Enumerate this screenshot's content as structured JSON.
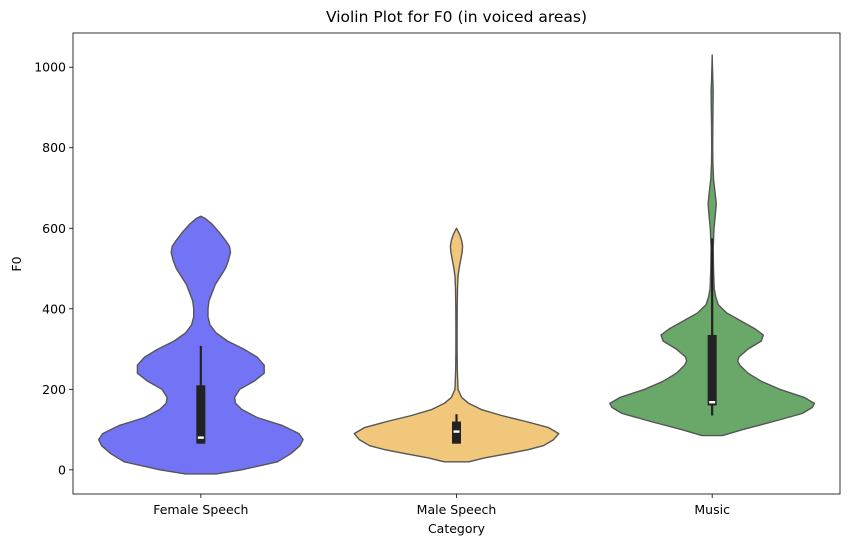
{
  "chart_data": {
    "type": "violin",
    "title": "Violin Plot for F0 (in voiced areas)",
    "xlabel": "Category",
    "ylabel": "F0",
    "categories": [
      "Female Speech",
      "Male Speech",
      "Music"
    ],
    "ylim": [
      -60,
      1085
    ],
    "yticks": [
      0,
      200,
      400,
      600,
      800,
      1000
    ],
    "grid": false,
    "series": [
      {
        "category": "Female Speech",
        "color": "#0000ee",
        "opacity": 0.55,
        "extent": [
          -10,
          630
        ],
        "density": [
          [
            -10,
            0.15
          ],
          [
            0,
            0.4
          ],
          [
            20,
            0.75
          ],
          [
            40,
            0.88
          ],
          [
            60,
            0.97
          ],
          [
            75,
            1.0
          ],
          [
            90,
            0.96
          ],
          [
            110,
            0.8
          ],
          [
            130,
            0.55
          ],
          [
            150,
            0.4
          ],
          [
            165,
            0.34
          ],
          [
            180,
            0.33
          ],
          [
            200,
            0.38
          ],
          [
            220,
            0.52
          ],
          [
            240,
            0.62
          ],
          [
            260,
            0.62
          ],
          [
            280,
            0.55
          ],
          [
            300,
            0.42
          ],
          [
            320,
            0.26
          ],
          [
            340,
            0.15
          ],
          [
            360,
            0.09
          ],
          [
            380,
            0.07
          ],
          [
            400,
            0.07
          ],
          [
            420,
            0.08
          ],
          [
            440,
            0.11
          ],
          [
            460,
            0.14
          ],
          [
            480,
            0.19
          ],
          [
            500,
            0.24
          ],
          [
            520,
            0.27
          ],
          [
            540,
            0.29
          ],
          [
            555,
            0.28
          ],
          [
            570,
            0.24
          ],
          [
            590,
            0.18
          ],
          [
            610,
            0.11
          ],
          [
            625,
            0.04
          ],
          [
            630,
            0.0
          ]
        ],
        "quartiles": [
          65,
          80,
          210
        ],
        "whiskers": [
          65,
          308
        ]
      },
      {
        "category": "Male Speech",
        "color": "#e69a0e",
        "opacity": 0.55,
        "extent": [
          20,
          600
        ],
        "density": [
          [
            20,
            0.12
          ],
          [
            30,
            0.28
          ],
          [
            40,
            0.5
          ],
          [
            50,
            0.7
          ],
          [
            60,
            0.85
          ],
          [
            75,
            0.95
          ],
          [
            90,
            1.0
          ],
          [
            105,
            0.9
          ],
          [
            120,
            0.68
          ],
          [
            135,
            0.44
          ],
          [
            150,
            0.24
          ],
          [
            165,
            0.12
          ],
          [
            180,
            0.05
          ],
          [
            200,
            0.015
          ],
          [
            250,
            0.008
          ],
          [
            300,
            0.006
          ],
          [
            350,
            0.006
          ],
          [
            400,
            0.007
          ],
          [
            450,
            0.01
          ],
          [
            480,
            0.015
          ],
          [
            500,
            0.025
          ],
          [
            520,
            0.04
          ],
          [
            540,
            0.055
          ],
          [
            555,
            0.06
          ],
          [
            570,
            0.05
          ],
          [
            585,
            0.03
          ],
          [
            600,
            0.0
          ]
        ],
        "quartiles": [
          65,
          95,
          120
        ],
        "whiskers": [
          65,
          138
        ]
      },
      {
        "category": "Music",
        "color": "#1a7a1a",
        "opacity": 0.65,
        "extent": [
          85,
          1030
        ],
        "density": [
          [
            85,
            0.1
          ],
          [
            100,
            0.3
          ],
          [
            120,
            0.6
          ],
          [
            140,
            0.88
          ],
          [
            155,
            0.98
          ],
          [
            165,
            1.0
          ],
          [
            180,
            0.9
          ],
          [
            200,
            0.66
          ],
          [
            220,
            0.48
          ],
          [
            240,
            0.35
          ],
          [
            260,
            0.27
          ],
          [
            270,
            0.25
          ],
          [
            280,
            0.26
          ],
          [
            300,
            0.35
          ],
          [
            320,
            0.48
          ],
          [
            335,
            0.5
          ],
          [
            350,
            0.42
          ],
          [
            370,
            0.28
          ],
          [
            390,
            0.14
          ],
          [
            410,
            0.06
          ],
          [
            430,
            0.035
          ],
          [
            450,
            0.02
          ],
          [
            500,
            0.013
          ],
          [
            550,
            0.01
          ],
          [
            600,
            0.018
          ],
          [
            630,
            0.03
          ],
          [
            660,
            0.04
          ],
          [
            690,
            0.028
          ],
          [
            720,
            0.014
          ],
          [
            760,
            0.007
          ],
          [
            800,
            0.005
          ],
          [
            850,
            0.006
          ],
          [
            900,
            0.008
          ],
          [
            940,
            0.01
          ],
          [
            970,
            0.006
          ],
          [
            1000,
            0.003
          ],
          [
            1030,
            0.0
          ]
        ],
        "quartiles": [
          160,
          168,
          335
        ],
        "whiskers": [
          135,
          575
        ]
      }
    ]
  }
}
